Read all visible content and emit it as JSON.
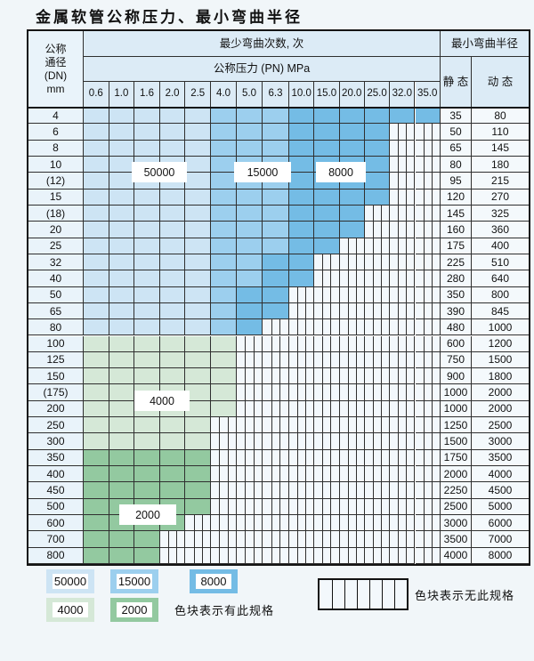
{
  "title": "金属软管公称压力、最小弯曲半径",
  "table": {
    "dn_header_lines": [
      "公称",
      "通径",
      "(DN)",
      "mm"
    ],
    "bend_cycles_header": "最少弯曲次数, 次",
    "pressure_header": "公称压力 (PN) MPa",
    "radius_header": "最小弯曲半径",
    "static_header": "静 态",
    "dynamic_header": "动 态",
    "pressure_columns": [
      "0.6",
      "1.0",
      "1.6",
      "2.0",
      "2.5",
      "4.0",
      "5.0",
      "6.3",
      "10.0",
      "15.0",
      "20.0",
      "25.0",
      "32.0",
      "35.0"
    ],
    "rows": [
      {
        "dn": "4",
        "cells": "AAAAABBBCCCCCC",
        "static": "35",
        "dynamic": "80"
      },
      {
        "dn": "6",
        "cells": "AAAAABBBCCCCXX",
        "static": "50",
        "dynamic": "110"
      },
      {
        "dn": "8",
        "cells": "AAAAABBBCCCCXX",
        "static": "65",
        "dynamic": "145"
      },
      {
        "dn": "10",
        "cells": "AAAAABBBCCCCXX",
        "static": "80",
        "dynamic": "180"
      },
      {
        "dn": "(12)",
        "cells": "AAAAABBBCCCCXX",
        "static": "95",
        "dynamic": "215"
      },
      {
        "dn": "15",
        "cells": "AAAAABBBCCCCXX",
        "static": "120",
        "dynamic": "270"
      },
      {
        "dn": "(18)",
        "cells": "AAAAABBBCCCXXX",
        "static": "145",
        "dynamic": "325"
      },
      {
        "dn": "20",
        "cells": "AAAAABBBCCCXXX",
        "static": "160",
        "dynamic": "360"
      },
      {
        "dn": "25",
        "cells": "AAAAABBBCCXXXX",
        "static": "175",
        "dynamic": "400"
      },
      {
        "dn": "32",
        "cells": "AAAAABBCCXXXXX",
        "static": "225",
        "dynamic": "510"
      },
      {
        "dn": "40",
        "cells": "AAAAABBCCXXXXX",
        "static": "280",
        "dynamic": "640"
      },
      {
        "dn": "50",
        "cells": "AAAAABCCXXXXXX",
        "static": "350",
        "dynamic": "800"
      },
      {
        "dn": "65",
        "cells": "AAAAABCCXXXXXX",
        "static": "390",
        "dynamic": "845"
      },
      {
        "dn": "80",
        "cells": "AAAAABCXXXXXXX",
        "static": "480",
        "dynamic": "1000"
      },
      {
        "dn": "100",
        "cells": "DDDDDDXXXXXXXX",
        "static": "600",
        "dynamic": "1200"
      },
      {
        "dn": "125",
        "cells": "DDDDDDXXXXXXXX",
        "static": "750",
        "dynamic": "1500"
      },
      {
        "dn": "150",
        "cells": "DDDDDDXXXXXXXX",
        "static": "900",
        "dynamic": "1800"
      },
      {
        "dn": "(175)",
        "cells": "DDDDDDXXXXXXXX",
        "static": "1000",
        "dynamic": "2000"
      },
      {
        "dn": "200",
        "cells": "DDDDDDXXXXXXXX",
        "static": "1000",
        "dynamic": "2000"
      },
      {
        "dn": "250",
        "cells": "DDDDDXXXXXXXXX",
        "static": "1250",
        "dynamic": "2500"
      },
      {
        "dn": "300",
        "cells": "DDDDDXXXXXXXXX",
        "static": "1500",
        "dynamic": "3000"
      },
      {
        "dn": "350",
        "cells": "EEEEEXXXXXXXXX",
        "static": "1750",
        "dynamic": "3500"
      },
      {
        "dn": "400",
        "cells": "EEEEEXXXXXXXXX",
        "static": "2000",
        "dynamic": "4000"
      },
      {
        "dn": "450",
        "cells": "EEEEEXXXXXXXXX",
        "static": "2250",
        "dynamic": "4500"
      },
      {
        "dn": "500",
        "cells": "EEEEEXXXXXXXXX",
        "static": "2500",
        "dynamic": "5000"
      },
      {
        "dn": "600",
        "cells": "EEEEXXXXXXXXXX",
        "static": "3000",
        "dynamic": "6000"
      },
      {
        "dn": "700",
        "cells": "EEEXXXXXXXXXXX",
        "static": "3500",
        "dynamic": "7000"
      },
      {
        "dn": "800",
        "cells": "EEEXXXXXXXXXXX",
        "static": "4000",
        "dynamic": "8000"
      }
    ]
  },
  "cycle_values": {
    "A": "50000",
    "B": "15000",
    "C": "8000",
    "D": "4000",
    "E": "2000"
  },
  "overlay_labels": [
    "50000",
    "15000",
    "8000",
    "4000",
    "2000"
  ],
  "legend": {
    "swatches_row1": [
      "50000",
      "15000",
      "8000"
    ],
    "swatches_row2": [
      "4000",
      "2000"
    ],
    "has_spec_label": "色块表示有此规格",
    "no_spec_label": "色块表示无此规格"
  },
  "colors": {
    "cycle_50000": "#cde4f4",
    "cycle_15000": "#9ccfee",
    "cycle_8000": "#74bce5",
    "cycle_4000": "#d5e8d7",
    "cycle_2000": "#93c9a0",
    "striped_bg": "#f3f8fc",
    "grid_line": "#2f2f2f",
    "header_bg": "#dcebf6",
    "dn_col_bg": "#e9f3fa",
    "value_col_bg": "#f4f9fc",
    "page_bg": "#f1f6f9"
  }
}
